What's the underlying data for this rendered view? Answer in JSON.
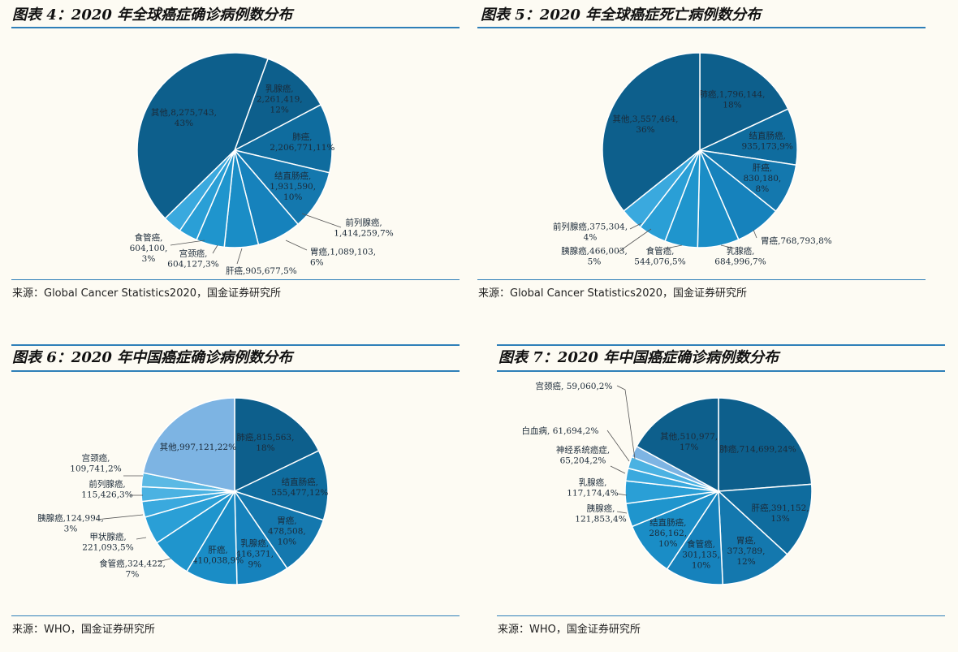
{
  "chart_data": [
    {
      "type": "pie",
      "title": "图表 4：2020 年全球癌症确诊病例数分布",
      "source": "来源：Global Cancer Statistics2020，国金证券研究所",
      "start_angle": 20,
      "colors": [
        "#0d5f8c",
        "#0f6c9e",
        "#1478ae",
        "#1682bc",
        "#1a8dc6",
        "#1f95cd",
        "#2a9fd6",
        "#3aa9de"
      ],
      "slices": [
        {
          "label": "乳腺癌,",
          "value": 2261419,
          "text": [
            "乳腺癌,",
            "2,261,419,",
            "12%"
          ],
          "label_pos": "inside"
        },
        {
          "label": "肺癌,",
          "value": 2206771,
          "text": [
            "肺癌,",
            "2,206,771,11%"
          ],
          "label_pos": "inside"
        },
        {
          "label": "结直肠癌,",
          "value": 1931590,
          "text": [
            "结直肠癌,",
            "1,931,590,",
            "10%"
          ],
          "label_pos": "inside"
        },
        {
          "label": "前列腺癌,",
          "value": 1414259,
          "text": [
            "前列腺癌,",
            "1,414,259,7%"
          ],
          "label_pos": "outside"
        },
        {
          "label": "胃癌,",
          "value": 1089103,
          "text": [
            "胃癌,1,089,103,",
            "6%"
          ],
          "label_pos": "outside"
        },
        {
          "label": "肝癌,",
          "value": 905677,
          "text": [
            "肝癌,905,677,5%"
          ],
          "label_pos": "outside"
        },
        {
          "label": "宫颈癌,",
          "value": 604127,
          "text": [
            "宫颈癌,",
            "604,127,3%"
          ],
          "label_pos": "outside"
        },
        {
          "label": "食管癌,",
          "value": 604100,
          "text": [
            "食管癌,",
            "604,100,",
            "3%"
          ],
          "label_pos": "outside"
        },
        {
          "label": "其他,",
          "value": 8275743,
          "text": [
            "其他,8,275,743,",
            "43%"
          ],
          "label_pos": "inside"
        }
      ]
    },
    {
      "type": "pie",
      "title": "图表 5：2020 年全球癌症死亡病例数分布",
      "source": "来源：Global Cancer Statistics2020，国金证券研究所",
      "start_angle": 0,
      "colors": [
        "#0d5f8c",
        "#0f6c9e",
        "#1478ae",
        "#1682bc",
        "#1a8dc6",
        "#1f95cd",
        "#2a9fd6",
        "#3aa9de"
      ],
      "slices": [
        {
          "label": "肺癌,",
          "value": 1796144,
          "text": [
            "肺癌,1,796,144,",
            "18%"
          ],
          "label_pos": "inside"
        },
        {
          "label": "结直肠癌,",
          "value": 935173,
          "text": [
            "结直肠癌,",
            "935,173,9%"
          ],
          "label_pos": "inside"
        },
        {
          "label": "肝癌,",
          "value": 830180,
          "text": [
            "肝癌,",
            "830,180,",
            "8%"
          ],
          "label_pos": "inside"
        },
        {
          "label": "胃癌,",
          "value": 768793,
          "text": [
            "胃癌,768,793,8%"
          ],
          "label_pos": "outside"
        },
        {
          "label": "乳腺癌,",
          "value": 684996,
          "text": [
            "乳腺癌,",
            "684,996,7%"
          ],
          "label_pos": "outside"
        },
        {
          "label": "食管癌,",
          "value": 544076,
          "text": [
            "食管癌,",
            "544,076,5%"
          ],
          "label_pos": "outside"
        },
        {
          "label": "胰腺癌,",
          "value": 466003,
          "text": [
            "胰腺癌,466,003,",
            "5%"
          ],
          "label_pos": "outside"
        },
        {
          "label": "前列腺癌,",
          "value": 375304,
          "text": [
            "前列腺癌,375,304,",
            "4%"
          ],
          "label_pos": "outside"
        },
        {
          "label": "其他,",
          "value": 3557464,
          "text": [
            "其他,3,557,464,",
            "36%"
          ],
          "label_pos": "inside"
        }
      ]
    },
    {
      "type": "pie",
      "title": "图表 6：2020 年中国癌症确诊病例数分布",
      "source": "来源：WHO，国金证券研究所",
      "start_angle": 0,
      "colors": [
        "#0d5f8c",
        "#0f6c9e",
        "#1478ae",
        "#1682bc",
        "#1a8dc6",
        "#1f95cd",
        "#2a9fd6",
        "#3aa9de",
        "#4bb2e2",
        "#5bb9e4",
        "#7db4e3"
      ],
      "slices": [
        {
          "label": "肺癌,",
          "value": 815563,
          "text": [
            "肺癌,815,563,",
            "18%"
          ],
          "label_pos": "inside"
        },
        {
          "label": "结直肠癌,",
          "value": 555477,
          "text": [
            "结直肠癌,",
            "555,477,12%"
          ],
          "label_pos": "inside"
        },
        {
          "label": "胃癌,",
          "value": 478508,
          "text": [
            "胃癌,",
            "478,508,",
            "10%"
          ],
          "label_pos": "inside"
        },
        {
          "label": "乳腺癌,",
          "value": 416371,
          "text": [
            "乳腺癌,",
            "416,371,",
            "9%"
          ],
          "label_pos": "inside"
        },
        {
          "label": "肝癌,",
          "value": 410038,
          "text": [
            "肝癌,",
            "410,038,9%"
          ],
          "label_pos": "inside"
        },
        {
          "label": "食管癌,",
          "value": 324422,
          "text": [
            "食管癌,324,422,",
            "7%"
          ],
          "label_pos": "outside"
        },
        {
          "label": "甲状腺癌,",
          "value": 221093,
          "text": [
            "甲状腺癌,",
            "221,093,5%"
          ],
          "label_pos": "outside"
        },
        {
          "label": "胰腺癌,",
          "value": 124994,
          "text": [
            "胰腺癌,124,994,",
            "3%"
          ],
          "label_pos": "outside"
        },
        {
          "label": "前列腺癌,",
          "value": 115426,
          "text": [
            "前列腺癌,",
            "115,426,3%"
          ],
          "label_pos": "outside"
        },
        {
          "label": "宫颈癌,",
          "value": 109741,
          "text": [
            "宫颈癌,",
            "109,741,2%"
          ],
          "label_pos": "outside"
        },
        {
          "label": "其他,",
          "value": 997121,
          "text": [
            "其他,997,121,22%"
          ],
          "label_pos": "inside"
        }
      ]
    },
    {
      "type": "pie",
      "title": "图表 7：2020 年中国癌症确诊病例数分布",
      "source": "来源：WHO，国金证券研究所",
      "start_angle": 0,
      "colors": [
        "#0d5f8c",
        "#0f6c9e",
        "#1478ae",
        "#1682bc",
        "#1a8dc6",
        "#1f95cd",
        "#2a9fd6",
        "#3aa9de",
        "#4bb2e2",
        "#7db4e3"
      ],
      "slices": [
        {
          "label": "肺癌,",
          "value": 714699,
          "text": [
            "肺癌,714,699,24%"
          ],
          "label_pos": "inside"
        },
        {
          "label": "肝癌,",
          "value": 391152,
          "text": [
            "肝癌,391,152,",
            "13%"
          ],
          "label_pos": "inside"
        },
        {
          "label": "胃癌,",
          "value": 373789,
          "text": [
            "胃癌,",
            "373,789,",
            "12%"
          ],
          "label_pos": "inside"
        },
        {
          "label": "食管癌,",
          "value": 301135,
          "text": [
            "食管癌,",
            "301,135,",
            "10%"
          ],
          "label_pos": "inside"
        },
        {
          "label": "结直肠癌,",
          "value": 286162,
          "text": [
            "结直肠癌,",
            "286,162,",
            "10%"
          ],
          "label_pos": "inside"
        },
        {
          "label": "胰腺癌,",
          "value": 121853,
          "text": [
            "胰腺癌,",
            "121,853,4%"
          ],
          "label_pos": "outside"
        },
        {
          "label": "乳腺癌,",
          "value": 117174,
          "text": [
            "乳腺癌,",
            "117,174,4%"
          ],
          "label_pos": "outside"
        },
        {
          "label": "神经系统癌症,",
          "value": 65204,
          "text": [
            "神经系统癌症,",
            "65,204,2%"
          ],
          "label_pos": "outside"
        },
        {
          "label": "白血病,",
          "value": 61694,
          "text": [
            "白血病, 61,694,2%"
          ],
          "label_pos": "outside"
        },
        {
          "label": "宫颈癌,",
          "value": 59060,
          "text": [
            "宫颈癌, 59,060,2%"
          ],
          "label_pos": "outside"
        },
        {
          "label": "其他,",
          "value": 510977,
          "text": [
            "其他,510,977,",
            "17%"
          ],
          "label_pos": "inside"
        }
      ]
    }
  ]
}
